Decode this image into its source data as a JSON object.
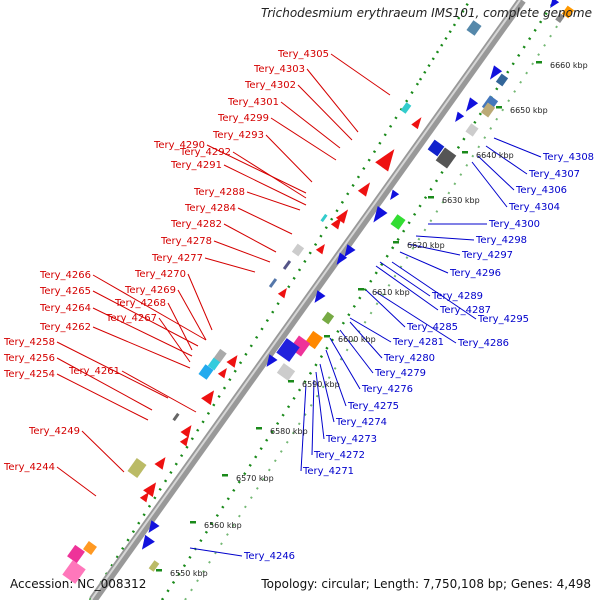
{
  "title": "Trichodesmium erythraeum IMS101, complete genome",
  "accession": "Accession: NC_008312",
  "summary": "Topology: circular; Length: 7,750,108 bp; Genes: 4,498",
  "colors": {
    "forward_label": "#d40000",
    "reverse_label": "#0000cc",
    "forward_gene": "#ee1111",
    "reverse_gene": "#1111dd",
    "backbone": "#999999",
    "dots": "#1a8a1a"
  },
  "map": {
    "ticks": [
      "6550 kbp",
      "6560 kbp",
      "6570 kbp",
      "6580 kbp",
      "6590 kbp",
      "6600 kbp",
      "6610 kbp",
      "6620 kbp",
      "6630 kbp",
      "6640 kbp",
      "6650 kbp",
      "6660 kbp"
    ],
    "forward_labels": [
      "Tery_4305",
      "Tery_4303",
      "Tery_4302",
      "Tery_4301",
      "Tery_4299",
      "Tery_4293",
      "Tery_4290",
      "Tery_4292",
      "Tery_4291",
      "Tery_4288",
      "Tery_4284",
      "Tery_4282",
      "Tery_4278",
      "Tery_4277",
      "Tery_4270",
      "Tery_4266",
      "Tery_4269",
      "Tery_4265",
      "Tery_4268",
      "Tery_4264",
      "Tery_4267",
      "Tery_4262",
      "Tery_4258",
      "Tery_4261",
      "Tery_4256",
      "Tery_4254",
      "Tery_4249",
      "Tery_4244"
    ],
    "reverse_labels": [
      "Tery_4308",
      "Tery_4307",
      "Tery_4306",
      "Tery_4304",
      "Tery_4300",
      "Tery_4298",
      "Tery_4297",
      "Tery_4296",
      "Tery_4289",
      "Tery_4287",
      "Tery_4295",
      "Tery_4285",
      "Tery_4286",
      "Tery_4281",
      "Tery_4280",
      "Tery_4279",
      "Tery_4276",
      "Tery_4275",
      "Tery_4274",
      "Tery_4273",
      "Tery_4272",
      "Tery_4271",
      "Tery_4246"
    ]
  }
}
